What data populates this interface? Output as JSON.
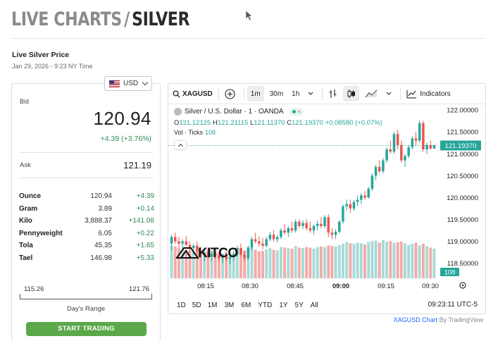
{
  "page": {
    "title_light": "LIVE CHARTS",
    "title_sep": "/",
    "title_bold": "SILVER",
    "subtitle": "Live Silver Price",
    "timestamp": "Jan 29, 2026 - 9:23 NY Time"
  },
  "currency": {
    "selected": "USD"
  },
  "prices": {
    "bid_label": "Bid",
    "bid": "120.94",
    "bid_change": "+4.39 (+3.76%)",
    "ask_label": "Ask",
    "ask": "121.19",
    "units": [
      {
        "name": "Ounce",
        "price": "120.94",
        "change": "+4.39"
      },
      {
        "name": "Gram",
        "price": "3.89",
        "change": "+0.14"
      },
      {
        "name": "Kilo",
        "price": "3,888.37",
        "change": "+141.08"
      },
      {
        "name": "Pennyweight",
        "price": "6.05",
        "change": "+0.22"
      },
      {
        "name": "Tola",
        "price": "45.35",
        "change": "+1.65"
      },
      {
        "name": "Tael",
        "price": "146.98",
        "change": "+5.33"
      }
    ],
    "day_range_low": "115.26",
    "day_range_high": "121.76",
    "day_range_label": "Day's Range",
    "cta": "START TRADING"
  },
  "chart": {
    "symbol": "XAGUSD",
    "intervals": [
      "1m",
      "30m",
      "1h"
    ],
    "active_interval": "1m",
    "indicators_label": "Indicators",
    "instrument": "Silver / U.S. Dollar · 1 · OANDA",
    "ohlc": {
      "o_label": "O",
      "o": "121.12125",
      "h_label": "H",
      "h": "121.21115",
      "l_label": "L",
      "l": "121.11370",
      "c_label": "C",
      "c": "121.19370",
      "change": "+0.08580 (+0.07%)"
    },
    "vol_label": "Vol · Ticks",
    "vol_value": "108",
    "watermark": "KITCO",
    "last_price_tag": "121.19370",
    "volume_tag": "108",
    "range_buttons": [
      "1D",
      "5D",
      "1M",
      "3M",
      "6M",
      "YTD",
      "1Y",
      "5Y",
      "All"
    ],
    "clock": "09:23:11 UTC-5",
    "attribution_link": "XAGUSD Chart",
    "attribution_by": "By TradingView",
    "colors": {
      "up": "#26a69a",
      "down": "#ef5350",
      "vol_up": "#a8dad6",
      "vol_down": "#f4aaa8",
      "price_tag": "#26a69a"
    }
  },
  "chart_data": {
    "type": "candlestick",
    "y_ticks": [
      "122.00000",
      "121.50000",
      "121.00000",
      "120.50000",
      "120.00000",
      "119.50000",
      "119.00000",
      "118.50000"
    ],
    "x_ticks": [
      "08:15",
      "08:30",
      "08:45",
      "09:00",
      "09:15",
      "09:30"
    ],
    "ylim": [
      118.35,
      122.05
    ],
    "candles": [
      [
        118.95,
        119.15,
        118.8,
        119.1
      ],
      [
        119.1,
        119.2,
        118.95,
        119.0
      ],
      [
        119.0,
        119.1,
        118.85,
        118.95
      ],
      [
        118.95,
        119.05,
        118.8,
        119.0
      ],
      [
        119.0,
        119.12,
        118.9,
        118.92
      ],
      [
        118.92,
        119.0,
        118.75,
        118.85
      ],
      [
        118.85,
        118.95,
        118.7,
        118.9
      ],
      [
        118.9,
        119.0,
        118.72,
        118.78
      ],
      [
        118.78,
        118.88,
        118.62,
        118.7
      ],
      [
        118.7,
        118.8,
        118.55,
        118.75
      ],
      [
        118.75,
        118.85,
        118.6,
        118.65
      ],
      [
        118.65,
        118.78,
        118.55,
        118.72
      ],
      [
        118.72,
        118.82,
        118.6,
        118.68
      ],
      [
        118.68,
        118.76,
        118.55,
        118.62
      ],
      [
        118.62,
        118.72,
        118.5,
        118.66
      ],
      [
        118.66,
        118.75,
        118.55,
        118.6
      ],
      [
        118.6,
        118.7,
        118.48,
        118.64
      ],
      [
        118.64,
        118.78,
        118.55,
        118.7
      ],
      [
        118.7,
        118.9,
        118.65,
        118.85
      ],
      [
        118.85,
        118.95,
        118.65,
        118.7
      ],
      [
        118.7,
        118.8,
        118.55,
        118.62
      ],
      [
        118.62,
        118.9,
        118.58,
        118.86
      ],
      [
        118.86,
        119.1,
        118.8,
        119.05
      ],
      [
        119.05,
        119.2,
        118.95,
        119.0
      ],
      [
        119.0,
        119.12,
        118.88,
        118.95
      ],
      [
        118.95,
        119.08,
        118.82,
        118.9
      ],
      [
        118.9,
        119.1,
        118.86,
        119.05
      ],
      [
        119.05,
        119.22,
        119.0,
        119.15
      ],
      [
        119.15,
        119.25,
        119.0,
        119.05
      ],
      [
        119.05,
        119.15,
        118.98,
        119.1
      ],
      [
        119.1,
        119.3,
        119.05,
        119.25
      ],
      [
        119.25,
        119.4,
        119.15,
        119.2
      ],
      [
        119.2,
        119.35,
        119.1,
        119.3
      ],
      [
        119.3,
        119.45,
        119.2,
        119.25
      ],
      [
        119.25,
        119.5,
        119.2,
        119.45
      ],
      [
        119.45,
        119.5,
        119.3,
        119.35
      ],
      [
        119.35,
        119.48,
        119.28,
        119.42
      ],
      [
        119.42,
        119.5,
        119.25,
        119.3
      ],
      [
        119.3,
        119.45,
        119.2,
        119.25
      ],
      [
        119.25,
        119.38,
        119.15,
        119.35
      ],
      [
        119.35,
        119.48,
        119.25,
        119.4
      ],
      [
        119.4,
        119.55,
        119.3,
        119.35
      ],
      [
        119.35,
        119.6,
        119.3,
        119.55
      ],
      [
        119.55,
        119.62,
        119.1,
        119.2
      ],
      [
        119.2,
        119.3,
        119.05,
        119.15
      ],
      [
        119.15,
        119.28,
        119.05,
        119.22
      ],
      [
        119.22,
        119.48,
        119.18,
        119.45
      ],
      [
        119.45,
        119.85,
        119.4,
        119.8
      ],
      [
        119.8,
        119.95,
        119.7,
        119.85
      ],
      [
        119.85,
        119.95,
        119.65,
        119.75
      ],
      [
        119.75,
        119.95,
        119.7,
        119.9
      ],
      [
        119.9,
        120.05,
        119.8,
        119.95
      ],
      [
        119.95,
        120.1,
        119.85,
        120.05
      ],
      [
        120.05,
        120.15,
        119.95,
        120.0
      ],
      [
        120.0,
        120.25,
        119.98,
        120.2
      ],
      [
        120.2,
        120.55,
        120.15,
        120.5
      ],
      [
        120.5,
        120.75,
        120.4,
        120.7
      ],
      [
        120.7,
        120.85,
        120.55,
        120.6
      ],
      [
        120.6,
        120.9,
        120.55,
        120.85
      ],
      [
        120.85,
        121.15,
        120.8,
        121.1
      ],
      [
        121.1,
        121.3,
        121.0,
        121.05
      ],
      [
        121.05,
        121.5,
        121.0,
        121.45
      ],
      [
        121.45,
        121.55,
        121.1,
        121.2
      ],
      [
        121.2,
        121.3,
        120.8,
        120.85
      ],
      [
        120.85,
        121.0,
        120.7,
        120.95
      ],
      [
        120.95,
        121.2,
        120.9,
        121.15
      ],
      [
        121.15,
        121.4,
        121.1,
        121.35
      ],
      [
        121.35,
        121.5,
        121.2,
        121.3
      ],
      [
        121.3,
        121.76,
        121.25,
        121.7
      ],
      [
        121.7,
        121.75,
        121.05,
        121.1
      ],
      [
        121.1,
        121.25,
        121.0,
        121.2
      ],
      [
        121.2,
        121.3,
        121.1,
        121.12
      ],
      [
        121.12,
        121.21,
        121.11,
        121.19
      ]
    ],
    "volumes": [
      118,
      117,
      110,
      105,
      104,
      100,
      98,
      100,
      96,
      95,
      104,
      100,
      98,
      92,
      90,
      95,
      88,
      93,
      110,
      104,
      100,
      110,
      112,
      104,
      98,
      100,
      106,
      110,
      104,
      102,
      114,
      112,
      110,
      108,
      118,
      112,
      110,
      114,
      112,
      108,
      114,
      116,
      114,
      120,
      118,
      116,
      122,
      126,
      132,
      128,
      126,
      130,
      128,
      124,
      132,
      136,
      138,
      130,
      140,
      134,
      136,
      130,
      132,
      134,
      128,
      122,
      126,
      130,
      120,
      126,
      118,
      112,
      108
    ]
  }
}
